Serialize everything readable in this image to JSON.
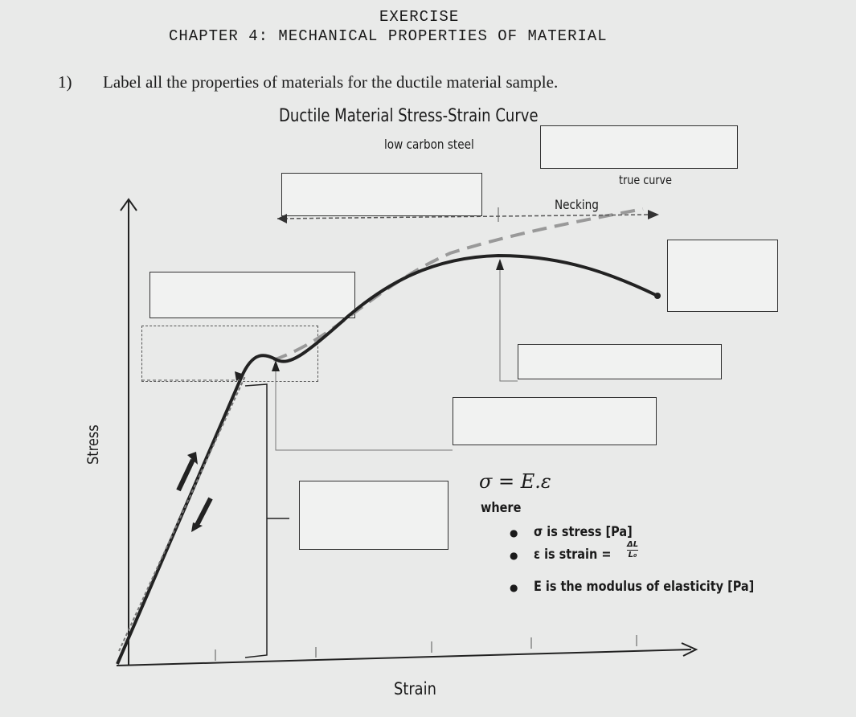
{
  "header": {
    "title": "EXERCISE",
    "chapter": "CHAPTER 4: MECHANICAL PROPERTIES OF MATERIAL"
  },
  "question": {
    "number": "1)",
    "text": "Label all the properties of materials for the ductile material sample."
  },
  "diagram": {
    "title": "Ductile Material Stress-Strain Curve",
    "subtitle": "low carbon steel",
    "true_curve_label": "true curve",
    "necking_label": "Necking",
    "y_axis_label": "Stress",
    "x_axis_label": "Strain",
    "blank_boxes": 8
  },
  "formula": {
    "equation": "σ = E.ε",
    "where": "where",
    "items": [
      "σ is stress [Pa]",
      "ε is strain = ΔL / L₀",
      "E is the modulus of elasticity [Pa]"
    ],
    "strain_prefix": "ε is strain =",
    "numerator": "ΔL",
    "denominator": "L₀"
  }
}
